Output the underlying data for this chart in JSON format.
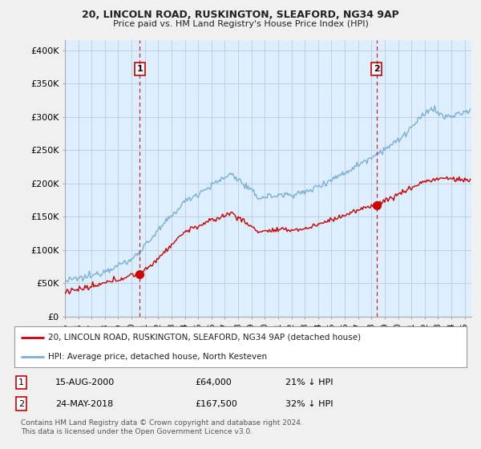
{
  "title1": "20, LINCOLN ROAD, RUSKINGTON, SLEAFORD, NG34 9AP",
  "title2": "Price paid vs. HM Land Registry's House Price Index (HPI)",
  "ylabel_ticks": [
    "£0",
    "£50K",
    "£100K",
    "£150K",
    "£200K",
    "£250K",
    "£300K",
    "£350K",
    "£400K"
  ],
  "ytick_vals": [
    0,
    50000,
    100000,
    150000,
    200000,
    250000,
    300000,
    350000,
    400000
  ],
  "ylim": [
    0,
    415000
  ],
  "xlim_start": 1995.0,
  "xlim_end": 2025.5,
  "sale1_x": 2000.62,
  "sale1_y": 64000,
  "sale2_x": 2018.39,
  "sale2_y": 167500,
  "sale1_label": "1",
  "sale2_label": "2",
  "legend_line1": "20, LINCOLN ROAD, RUSKINGTON, SLEAFORD, NG34 9AP (detached house)",
  "legend_line2": "HPI: Average price, detached house, North Kesteven",
  "annot1_num": "1",
  "annot1_date": "15-AUG-2000",
  "annot1_price": "£64,000",
  "annot1_hpi": "21% ↓ HPI",
  "annot2_num": "2",
  "annot2_date": "24-MAY-2018",
  "annot2_price": "£167,500",
  "annot2_hpi": "32% ↓ HPI",
  "footer": "Contains HM Land Registry data © Crown copyright and database right 2024.\nThis data is licensed under the Open Government Licence v3.0.",
  "hpi_color": "#7bafd4",
  "sale_color": "#cc0000",
  "vline_color": "#cc0000",
  "background_color": "#f0f0f0",
  "plot_bg_color": "#ddeeff"
}
